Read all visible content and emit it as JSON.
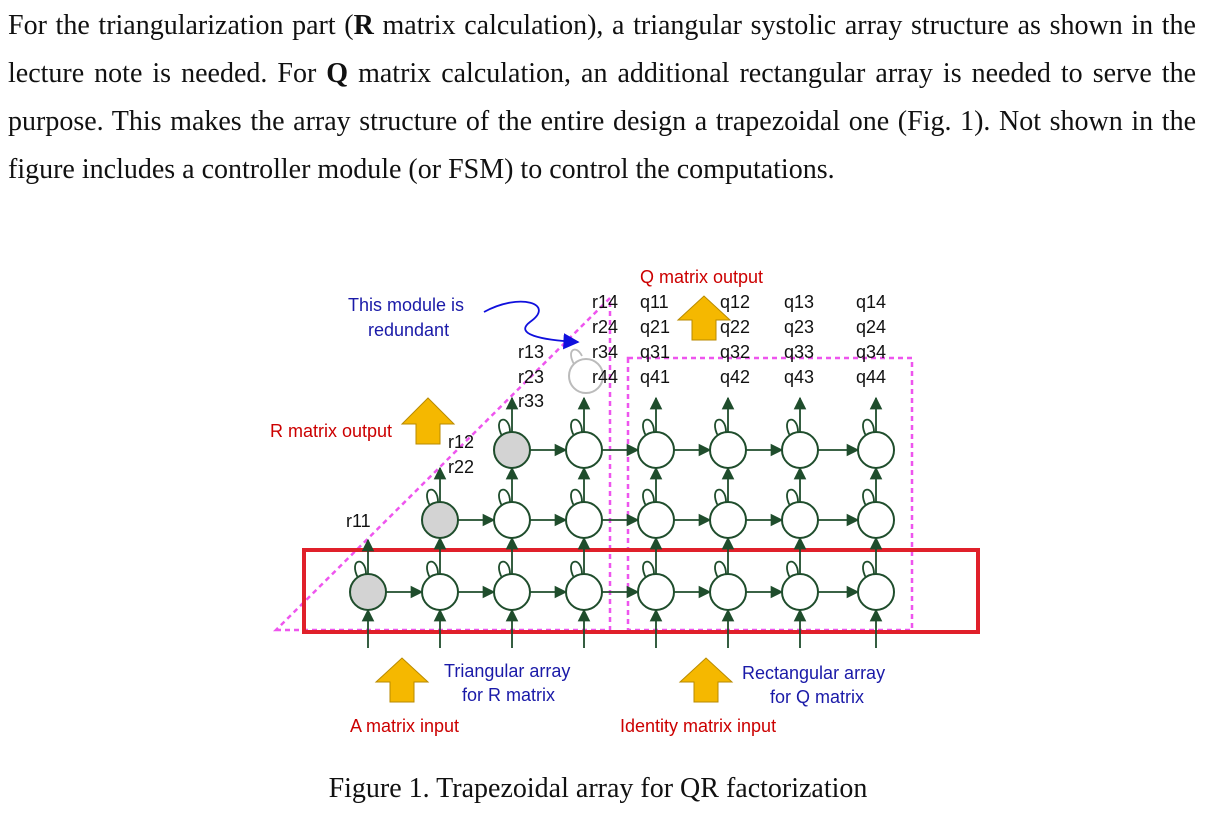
{
  "paragraph": {
    "t1": "For the triangularization part (",
    "b1": "R",
    "t2": " matrix calculation), a triangular systolic array structure as shown in the lecture note is needed. For ",
    "b2": "Q",
    "t3": " matrix calculation, an additional rectangular array is needed to serve the purpose. This makes the array structure of the entire design a trapezoidal one (Fig. 1). Not shown in the figure includes a controller module (or FSM) to control the computations."
  },
  "figure": {
    "q_output_label": "Q matrix output",
    "r_output_label": "R matrix output",
    "redundant_label_1": "This module is",
    "redundant_label_2": "redundant",
    "triangular_label_1": "Triangular array",
    "triangular_label_2": "for R matrix",
    "rectangular_label_1": "Rectangular array",
    "rectangular_label_2": "for Q matrix",
    "a_input_label": "A matrix input",
    "identity_input_label": "Identity matrix input",
    "r_col1": "r11",
    "r_col2": [
      "r12",
      "r22"
    ],
    "r_col3": [
      "r13",
      "r23",
      "r33"
    ],
    "r_col4": [
      "r14",
      "r24",
      "r34",
      "r44"
    ],
    "q_col1": [
      "q11",
      "q21",
      "q31",
      "q41"
    ],
    "q_col2": [
      "q12",
      "q22",
      "q32",
      "q42"
    ],
    "q_col3": [
      "q13",
      "q23",
      "q33",
      "q43"
    ],
    "q_col4": [
      "q14",
      "q24",
      "q34",
      "q44"
    ],
    "colors": {
      "node_stroke": "#1f4d2c",
      "boundary_fill": "#d3d3d3",
      "dashed": "#ee55ee",
      "highlight": "#e0202a",
      "arrow_fill": "#f5b800",
      "blue_arrow": "#1010dd"
    }
  },
  "caption": "Figure 1. Trapezoidal array for QR factorization"
}
